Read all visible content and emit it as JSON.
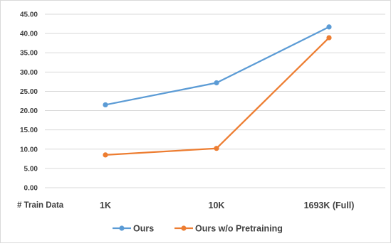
{
  "chart_data": {
    "type": "line",
    "title": "",
    "xlabel": "# Train Data",
    "ylabel": "",
    "categories": [
      "1K",
      "10K",
      "1693K (Full)"
    ],
    "ylim": [
      0,
      45
    ],
    "yticks": [
      "0.00",
      "5.00",
      "10.00",
      "15.00",
      "20.00",
      "25.00",
      "30.00",
      "35.00",
      "40.00",
      "45.00"
    ],
    "grid": true,
    "legend_position": "bottom",
    "series": [
      {
        "name": "Ours",
        "color": "#5b9bd5",
        "values": [
          21.5,
          27.2,
          41.7
        ]
      },
      {
        "name": "Ours w/o Pretraining",
        "color": "#ed7d31",
        "values": [
          8.5,
          10.2,
          38.9
        ]
      }
    ]
  }
}
